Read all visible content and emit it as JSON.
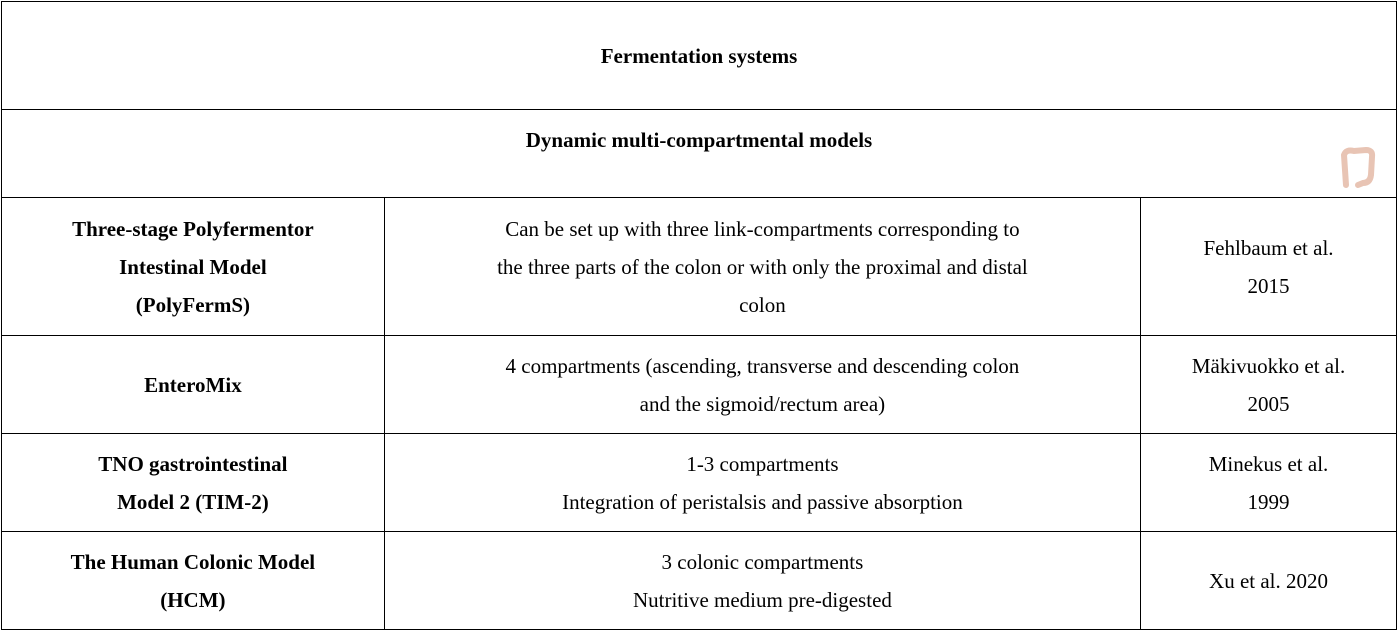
{
  "table": {
    "title": "Fermentation systems",
    "subtitle": "Dynamic multi-compartmental models",
    "rows": [
      {
        "model": [
          "Three-stage Polyfermentor",
          "Intestinal Model",
          "(PolyFermS)"
        ],
        "description": [
          "Can be set up with three link-compartments corresponding to",
          "the three parts of the colon or with only the proximal and distal",
          "colon"
        ],
        "reference": [
          "Fehlbaum et al.",
          "2015"
        ]
      },
      {
        "model": [
          "EnteroMix"
        ],
        "description": [
          "4 compartments (ascending, transverse and descending colon",
          "and the sigmoid/rectum area)"
        ],
        "reference": [
          "Mäkivuokko et al.",
          "2005"
        ]
      },
      {
        "model": [
          "TNO gastrointestinal",
          "Model 2 (TIM-2)"
        ],
        "description": [
          "1-3 compartments",
          "Integration of peristalsis and passive absorption"
        ],
        "reference": [
          "Minekus et al.",
          "1999"
        ]
      },
      {
        "model": [
          "The Human Colonic Model",
          "(HCM)"
        ],
        "description": [
          "3 colonic compartments",
          "Nutritive medium pre-digested"
        ],
        "reference": [
          "Xu et al. 2020"
        ]
      }
    ]
  }
}
